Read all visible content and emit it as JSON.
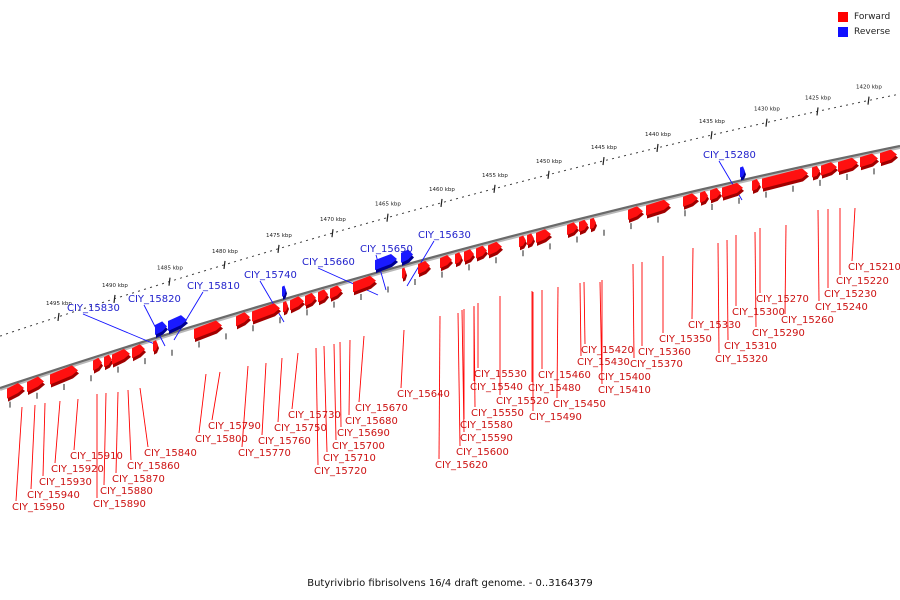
{
  "legend": {
    "forward_label": "Forward",
    "reverse_label": "Reverse",
    "forward_color": "#ff0000",
    "reverse_color": "#1010ff"
  },
  "caption": "Butyrivibrio fibrisolvens 16/4 draft genome. - 0..3164379",
  "scale": {
    "unit": "kbp",
    "labels": [
      "1420 kbp",
      "1425 kbp",
      "1430 kbp",
      "1435 kbp",
      "1440 kbp",
      "1445 kbp",
      "1450 kbp",
      "1455 kbp",
      "1460 kbp",
      "1465 kbp",
      "1470 kbp",
      "1475 kbp",
      "1480 kbp",
      "1485 kbp",
      "1490 kbp",
      "1495 kbp"
    ]
  },
  "genes": [
    {
      "id": "CIY_15210",
      "strand": "forward"
    },
    {
      "id": "CIY_15220",
      "strand": "forward"
    },
    {
      "id": "CIY_15230",
      "strand": "forward"
    },
    {
      "id": "CIY_15240",
      "strand": "forward"
    },
    {
      "id": "CIY_15260",
      "strand": "forward"
    },
    {
      "id": "CIY_15270",
      "strand": "forward"
    },
    {
      "id": "CIY_15280",
      "strand": "reverse"
    },
    {
      "id": "CIY_15290",
      "strand": "forward"
    },
    {
      "id": "CIY_15300",
      "strand": "forward"
    },
    {
      "id": "CIY_15310",
      "strand": "forward"
    },
    {
      "id": "CIY_15320",
      "strand": "forward"
    },
    {
      "id": "CIY_15330",
      "strand": "forward"
    },
    {
      "id": "CIY_15350",
      "strand": "forward"
    },
    {
      "id": "CIY_15360",
      "strand": "forward"
    },
    {
      "id": "CIY_15370",
      "strand": "forward"
    },
    {
      "id": "CIY_15400",
      "strand": "forward"
    },
    {
      "id": "CIY_15410",
      "strand": "forward"
    },
    {
      "id": "CIY_15420",
      "strand": "forward"
    },
    {
      "id": "CIY_15430",
      "strand": "forward"
    },
    {
      "id": "CIY_15450",
      "strand": "forward"
    },
    {
      "id": "CIY_15460",
      "strand": "forward"
    },
    {
      "id": "CIY_15480",
      "strand": "forward"
    },
    {
      "id": "CIY_15490",
      "strand": "forward"
    },
    {
      "id": "CIY_15520",
      "strand": "forward"
    },
    {
      "id": "CIY_15530",
      "strand": "forward"
    },
    {
      "id": "CIY_15540",
      "strand": "forward"
    },
    {
      "id": "CIY_15550",
      "strand": "forward"
    },
    {
      "id": "CIY_15580",
      "strand": "forward"
    },
    {
      "id": "CIY_15590",
      "strand": "forward"
    },
    {
      "id": "CIY_15600",
      "strand": "forward"
    },
    {
      "id": "CIY_15620",
      "strand": "forward"
    },
    {
      "id": "CIY_15630",
      "strand": "reverse"
    },
    {
      "id": "CIY_15640",
      "strand": "forward"
    },
    {
      "id": "CIY_15650",
      "strand": "reverse"
    },
    {
      "id": "CIY_15660",
      "strand": "reverse"
    },
    {
      "id": "CIY_15670",
      "strand": "forward"
    },
    {
      "id": "CIY_15680",
      "strand": "forward"
    },
    {
      "id": "CIY_15690",
      "strand": "forward"
    },
    {
      "id": "CIY_15700",
      "strand": "forward"
    },
    {
      "id": "CIY_15710",
      "strand": "forward"
    },
    {
      "id": "CIY_15720",
      "strand": "forward"
    },
    {
      "id": "CIY_15730",
      "strand": "forward"
    },
    {
      "id": "CIY_15740",
      "strand": "reverse"
    },
    {
      "id": "CIY_15750",
      "strand": "forward"
    },
    {
      "id": "CIY_15760",
      "strand": "forward"
    },
    {
      "id": "CIY_15770",
      "strand": "forward"
    },
    {
      "id": "CIY_15790",
      "strand": "forward"
    },
    {
      "id": "CIY_15800",
      "strand": "forward"
    },
    {
      "id": "CIY_15810",
      "strand": "reverse"
    },
    {
      "id": "CIY_15820",
      "strand": "reverse"
    },
    {
      "id": "CIY_15830",
      "strand": "reverse"
    },
    {
      "id": "CIY_15840",
      "strand": "forward"
    },
    {
      "id": "CIY_15860",
      "strand": "forward"
    },
    {
      "id": "CIY_15870",
      "strand": "forward"
    },
    {
      "id": "CIY_15880",
      "strand": "forward"
    },
    {
      "id": "CIY_15890",
      "strand": "forward"
    },
    {
      "id": "CIY_15910",
      "strand": "forward"
    },
    {
      "id": "CIY_15920",
      "strand": "forward"
    },
    {
      "id": "CIY_15930",
      "strand": "forward"
    },
    {
      "id": "CIY_15940",
      "strand": "forward"
    },
    {
      "id": "CIY_15950",
      "strand": "forward"
    }
  ]
}
